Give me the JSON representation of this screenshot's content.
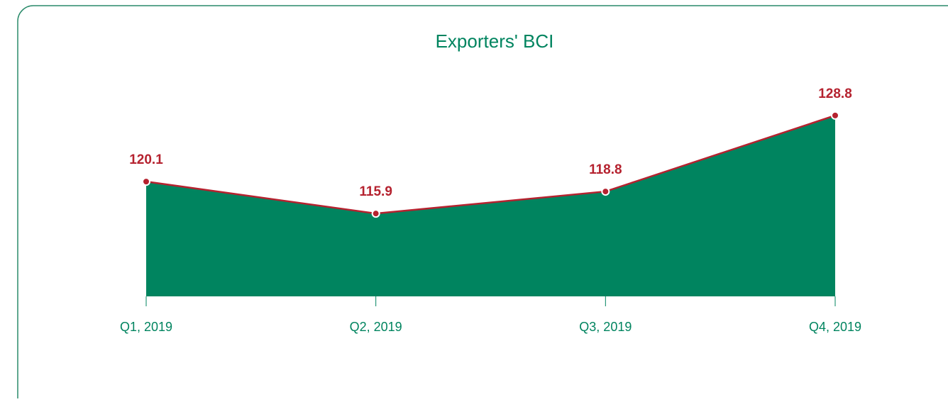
{
  "chart_data": {
    "type": "area",
    "title": "Exporters' BCI",
    "categories": [
      "Q1, 2019",
      "Q2, 2019",
      "Q3, 2019",
      "Q4, 2019"
    ],
    "values": [
      120.1,
      115.9,
      118.8,
      128.8
    ],
    "color": "#00845f",
    "line_color": "#b5222f",
    "ylim": [
      105,
      130
    ]
  }
}
